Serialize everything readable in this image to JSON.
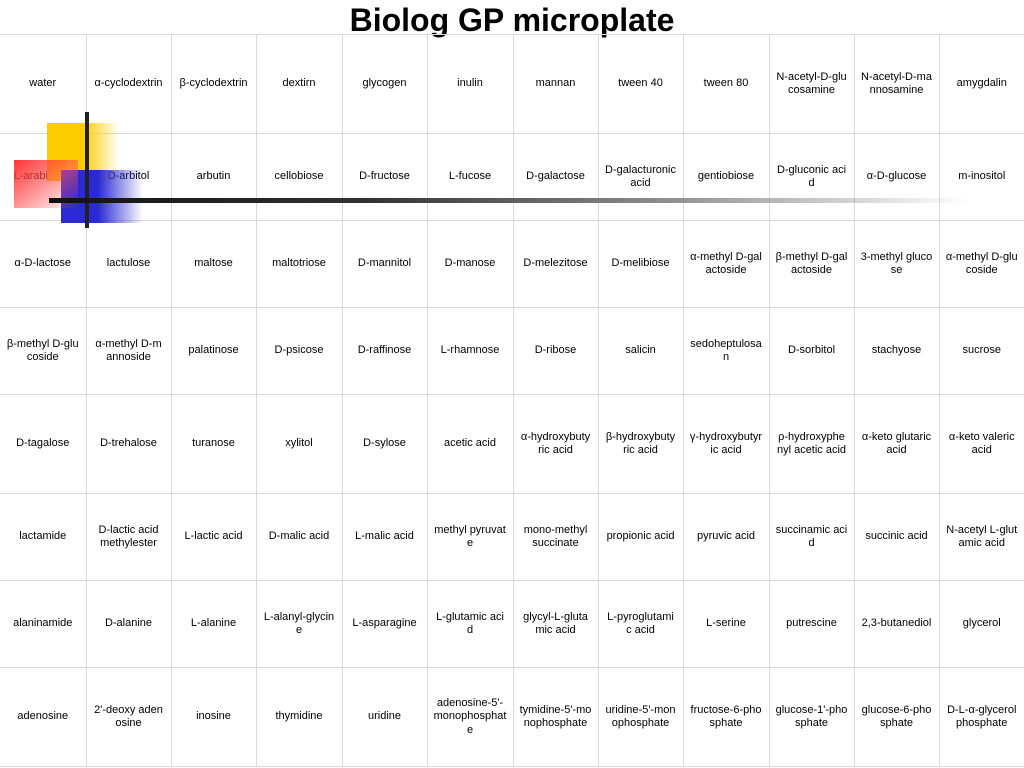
{
  "title": "Biolog GP microplate",
  "rows": [
    [
      "water",
      "α-cyclodextrin",
      "β-cyclodextrin",
      "dextirn",
      "glycogen",
      "inulin",
      "mannan",
      "tween 40",
      "tween 80",
      "N-acetyl-D-glucosamine",
      "N-acetyl-D-mannosamine",
      "amygdalin"
    ],
    [
      "L-arabinose",
      "D-arbitol",
      "arbutin",
      "cellobiose",
      "D-fructose",
      "L-fucose",
      "D-galactose",
      "D-galacturonic acid",
      "gentiobiose",
      "D-gluconic acid",
      "α-D-glucose",
      "m-inositol"
    ],
    [
      "α-D-lactose",
      "lactulose",
      "maltose",
      "maltotriose",
      "D-mannitol",
      "D-manose",
      "D-melezitose",
      "D-melibiose",
      "α-methyl D-galactoside",
      "β-methyl D-galactoside",
      "3-methyl glucose",
      "α-methyl D-glucoside"
    ],
    [
      "β-methyl D-glucoside",
      "α-methyl D-mannoside",
      "palatinose",
      "D-psicose",
      "D-raffinose",
      "L-rhamnose",
      "D-ribose",
      "salicin",
      "sedoheptulosan",
      "D-sorbitol",
      "stachyose",
      "sucrose"
    ],
    [
      "D-tagalose",
      "D-trehalose",
      "turanose",
      "xylitol",
      "D-sylose",
      "acetic acid",
      "α-hydroxybutyric acid",
      "β-hydroxybutyric acid",
      "γ-hydroxybutyric acid",
      "ρ-hydroxyphenyl acetic acid",
      "α-keto glutaric acid",
      "α-keto valeric acid"
    ],
    [
      "lactamide",
      "D-lactic acid methylester",
      "L-lactic acid",
      "D-malic acid",
      "L-malic acid",
      "methyl pyruvate",
      "mono-methyl succinate",
      "propionic acid",
      "pyruvic acid",
      "succinamic acid",
      "succinic acid",
      "N-acetyl L-glutamic acid"
    ],
    [
      "alaninamide",
      "D-alanine",
      "L-alanine",
      "L-alanyl-glycine",
      "L-asparagine",
      "L-glutamic acid",
      "glycyl-L-glutamic acid",
      "L-pyroglutamic acid",
      "L-serine",
      "putrescine",
      "2,3-butanediol",
      "glycerol"
    ],
    [
      "adenosine",
      "2'-deoxy adenosine",
      "inosine",
      "thymidine",
      "uridine",
      "adenosine-5'-monophosphate",
      "tymidine-5'-monophosphate",
      "uridine-5'-monophosphate",
      "fructose-6-phosphate",
      "glucose-1'-phosphate",
      "glucose-6-phosphate",
      "D-L-α-glycerol phosphate"
    ]
  ],
  "colors": {
    "grid": "#d9d9d9",
    "deco_yellow": "#ffcc00",
    "deco_blue": "#2a2ad4",
    "deco_red": "#ff2828",
    "deco_line": "#222222"
  }
}
